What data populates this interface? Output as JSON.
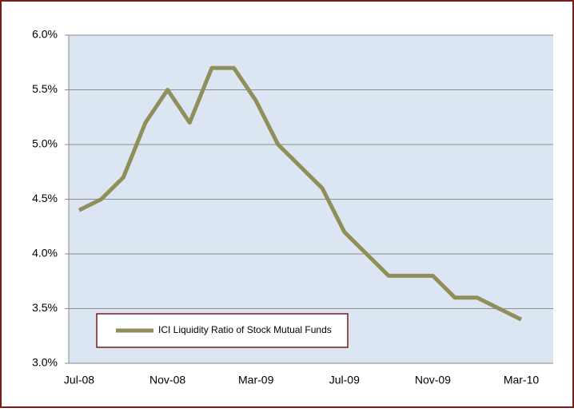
{
  "chart_data": {
    "type": "line",
    "categories": [
      "Jul-08",
      null,
      null,
      null,
      "Nov-08",
      null,
      null,
      null,
      "Mar-09",
      null,
      null,
      null,
      "Jul-09",
      null,
      null,
      null,
      "Nov-09",
      null,
      null,
      null,
      "Mar-10"
    ],
    "series": [
      {
        "name": "ICI Liquidity Ratio of Stock Mutual Funds",
        "color": "#8f8f5c",
        "values": [
          4.4,
          4.5,
          4.7,
          5.2,
          5.5,
          5.2,
          5.7,
          5.7,
          5.4,
          5.0,
          4.8,
          4.6,
          4.2,
          4.0,
          3.8,
          3.8,
          3.8,
          3.6,
          3.6,
          3.5,
          3.4
        ]
      }
    ],
    "ylim": [
      3.0,
      6.0
    ],
    "yticks": [
      {
        "value": 3.0,
        "label": "3.0%"
      },
      {
        "value": 3.5,
        "label": "3.5%"
      },
      {
        "value": 4.0,
        "label": "4.0%"
      },
      {
        "value": 4.5,
        "label": "4.5%"
      },
      {
        "value": 5.0,
        "label": "5.0%"
      },
      {
        "value": 5.5,
        "label": "5.5%"
      },
      {
        "value": 6.0,
        "label": "6.0%"
      }
    ],
    "grid": true
  }
}
